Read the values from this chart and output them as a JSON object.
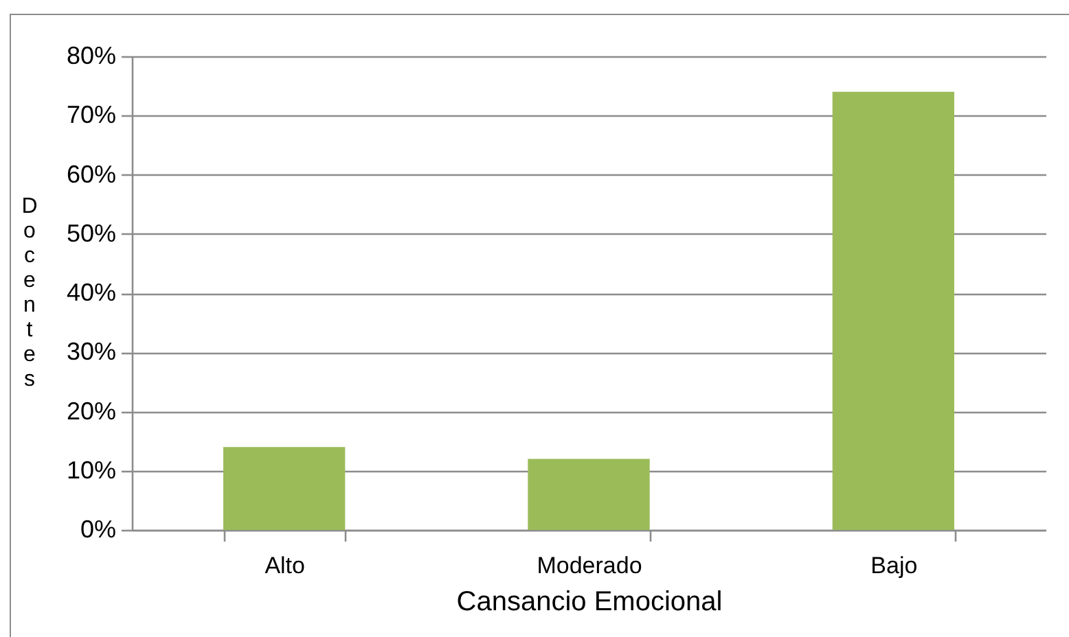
{
  "chart_data": {
    "type": "bar",
    "xlabel": "Cansancio Emocional",
    "ylabel": "Docentes",
    "categories": [
      "Alto",
      "Moderado",
      "Bajo"
    ],
    "values": [
      14,
      12,
      74
    ],
    "color": "#9bbb59",
    "ylim": [
      0,
      80
    ],
    "yticks": [
      {
        "value": 0,
        "label": "0%"
      },
      {
        "value": 10,
        "label": "10%"
      },
      {
        "value": 20,
        "label": "20%"
      },
      {
        "value": 30,
        "label": "30%"
      },
      {
        "value": 40,
        "label": "40%"
      },
      {
        "value": 50,
        "label": "50%"
      },
      {
        "value": 60,
        "label": "60%"
      },
      {
        "value": 70,
        "label": "70%"
      },
      {
        "value": 80,
        "label": "80%"
      }
    ],
    "grid": "y"
  }
}
